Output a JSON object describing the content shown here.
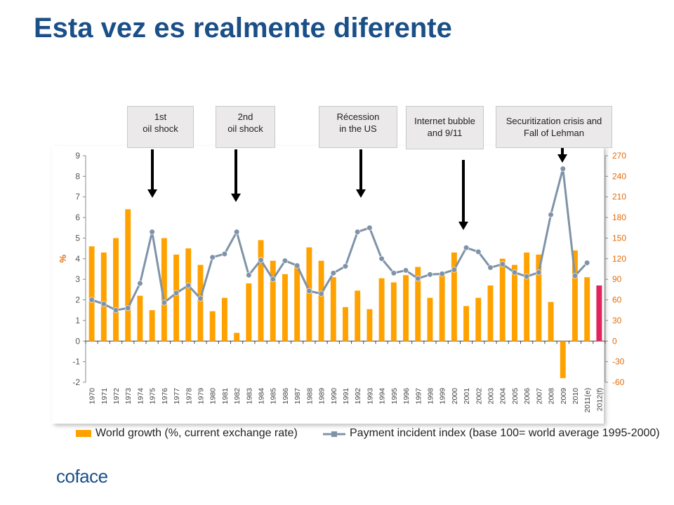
{
  "page": {
    "title": "Esta vez es realmente diferente"
  },
  "callouts": [
    {
      "id": "oil1",
      "lines": [
        "1st",
        "oil shock"
      ]
    },
    {
      "id": "oil2",
      "lines": [
        "2nd",
        "oil shock"
      ]
    },
    {
      "id": "us",
      "lines": [
        "Récession",
        "in the US"
      ]
    },
    {
      "id": "bubble",
      "lines": [
        "Internet bubble",
        "and 9/11"
      ]
    },
    {
      "id": "lehman",
      "lines": [
        "Securitization crisis and",
        "Fall of Lehman"
      ]
    }
  ],
  "logo": {
    "text": "coface"
  },
  "colors": {
    "bars": "#ffa200",
    "bar_estimate": "#e0245e",
    "line": "#7f93a8",
    "left_axis": "#555555",
    "right_axis": "#e46c0a",
    "title": "#1a4f87",
    "logo": "#1a4f87"
  },
  "chart_data": {
    "type": "bar",
    "categories": [
      "1970",
      "1971",
      "1972",
      "1973",
      "1974",
      "1975",
      "1976",
      "1977",
      "1978",
      "1979",
      "1980",
      "1981",
      "1982",
      "1983",
      "1984",
      "1985",
      "1986",
      "1987",
      "1988",
      "1989",
      "1990",
      "1991",
      "1992",
      "1993",
      "1994",
      "1995",
      "1996",
      "1997",
      "1998",
      "1999",
      "2000",
      "2001",
      "2002",
      "2003",
      "2004",
      "2005",
      "2006",
      "2007",
      "2008",
      "2009",
      "2010",
      "2011(e)",
      "2012(f)"
    ],
    "series": [
      {
        "name": "World growth (%, current exchange rate)",
        "type": "bar",
        "axis": "left",
        "values": [
          4.6,
          4.3,
          5.0,
          6.4,
          2.2,
          1.5,
          5.0,
          4.2,
          4.5,
          3.7,
          1.45,
          2.1,
          0.4,
          2.8,
          4.9,
          3.9,
          3.25,
          3.65,
          4.55,
          3.9,
          3.1,
          1.65,
          2.45,
          1.55,
          3.05,
          2.85,
          3.2,
          3.6,
          2.1,
          3.25,
          4.3,
          1.7,
          2.1,
          2.7,
          4.0,
          3.7,
          4.3,
          4.2,
          1.9,
          -1.8,
          4.4,
          3.1,
          2.7
        ]
      },
      {
        "name": "Payment incident index (base 100= world average 1995-2000)",
        "type": "line",
        "axis": "right",
        "values": [
          60,
          54,
          45,
          48,
          84,
          159,
          56,
          70,
          81,
          62,
          122,
          127,
          159,
          96,
          118,
          90,
          117,
          110,
          73,
          69,
          99,
          109,
          159,
          165,
          120,
          99,
          103,
          91,
          97,
          98,
          104,
          136,
          130,
          107,
          112,
          100,
          94,
          100,
          184,
          251,
          95,
          114,
          null
        ]
      }
    ],
    "yleft": {
      "label": "%",
      "ticks": [
        9,
        8,
        7,
        6,
        5,
        4,
        3,
        2,
        1,
        0,
        -1,
        -2
      ],
      "ylim": [
        -2,
        9
      ]
    },
    "yright": {
      "ticks": [
        270,
        240,
        210,
        180,
        150,
        120,
        90,
        60,
        30,
        0,
        -30,
        -60
      ],
      "ylim": [
        -60,
        270
      ]
    },
    "grid": false,
    "legend_position": "bottom"
  }
}
